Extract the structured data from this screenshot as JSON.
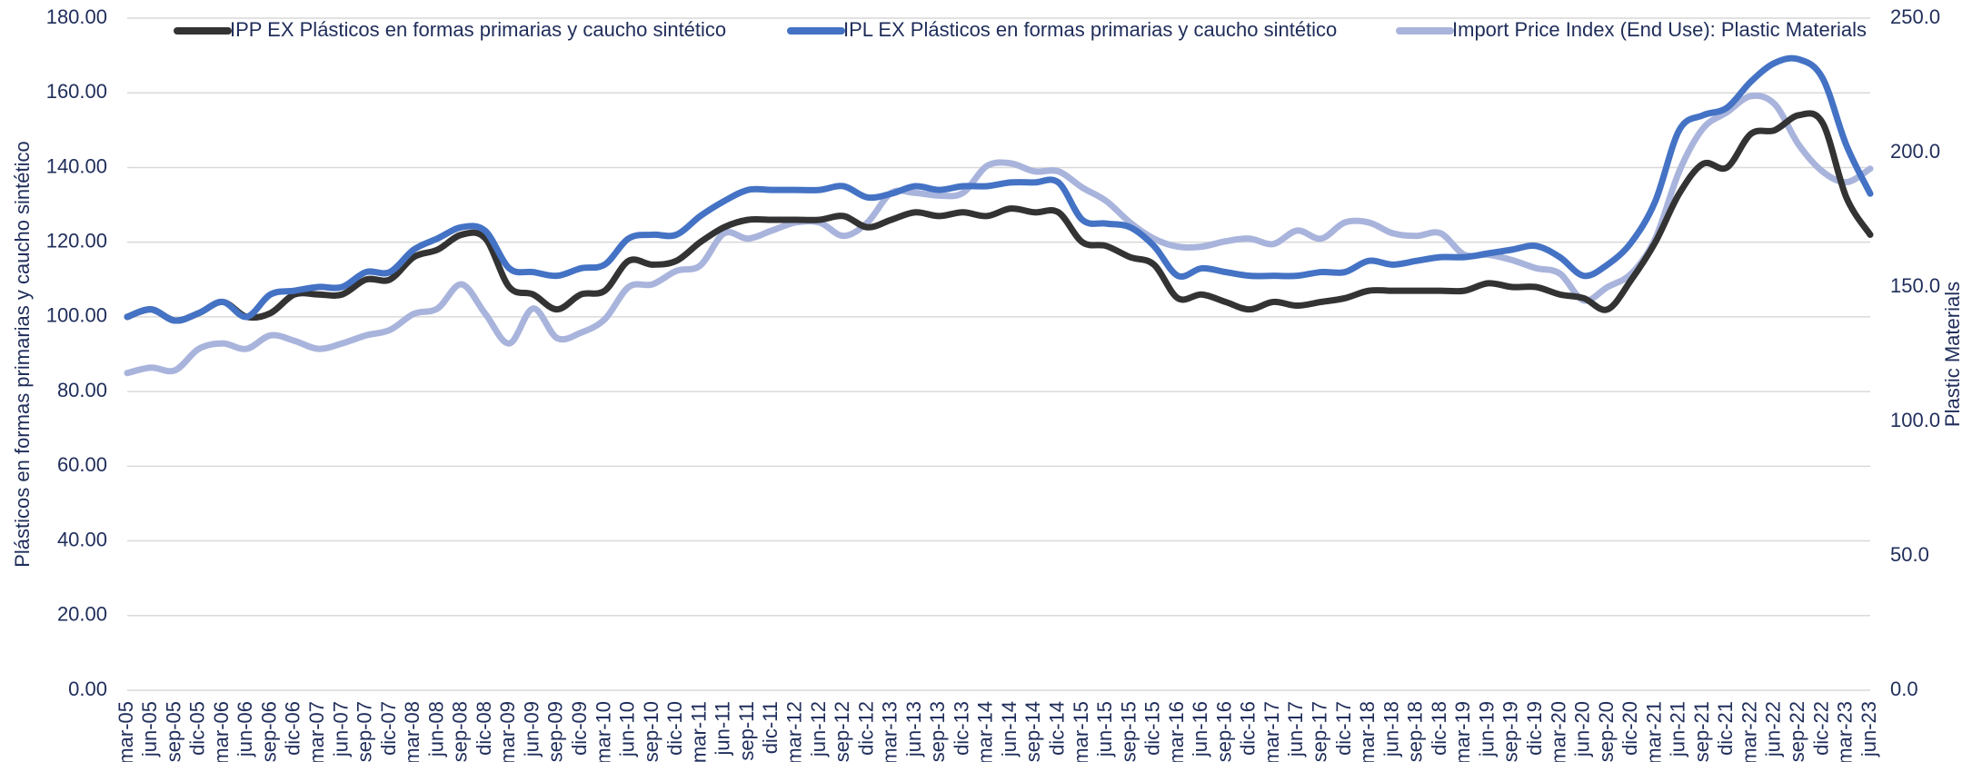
{
  "chart_data": {
    "type": "line",
    "y_label": "Plásticos en formas primarias y caucho sintético",
    "y2_label": "Plastic Materials",
    "categories": [
      "mar-05",
      "jun-05",
      "sep-05",
      "dic-05",
      "mar-06",
      "jun-06",
      "sep-06",
      "dic-06",
      "mar-07",
      "jun-07",
      "sep-07",
      "dic-07",
      "mar-08",
      "jun-08",
      "sep-08",
      "dic-08",
      "mar-09",
      "jun-09",
      "sep-09",
      "dic-09",
      "mar-10",
      "jun-10",
      "sep-10",
      "dic-10",
      "mar-11",
      "jun-11",
      "sep-11",
      "dic-11",
      "mar-12",
      "jun-12",
      "sep-12",
      "dic-12",
      "mar-13",
      "jun-13",
      "sep-13",
      "dic-13",
      "mar-14",
      "jun-14",
      "sep-14",
      "dic-14",
      "mar-15",
      "jun-15",
      "sep-15",
      "dic-15",
      "mar-16",
      "jun-16",
      "sep-16",
      "dic-16",
      "mar-17",
      "jun-17",
      "sep-17",
      "dic-17",
      "mar-18",
      "jun-18",
      "sep-18",
      "dic-18",
      "mar-19",
      "jun-19",
      "sep-19",
      "dic-19",
      "mar-20",
      "jun-20",
      "sep-20",
      "dic-20",
      "mar-21",
      "jun-21",
      "sep-21",
      "dic-21",
      "mar-22",
      "jun-22",
      "sep-22",
      "dic-22",
      "mar-23",
      "jun-23"
    ],
    "series": [
      {
        "name": "IPP EX Plásticos en formas primarias y caucho sintético",
        "color": "#333333",
        "values": [
          100,
          102,
          99,
          101,
          104,
          100,
          101,
          106,
          106,
          106,
          110,
          110,
          116,
          118,
          122,
          121,
          108,
          106,
          102,
          106,
          107,
          115,
          114,
          115,
          120,
          124,
          126,
          126,
          126,
          126,
          127,
          124,
          126,
          128,
          127,
          128,
          127,
          129,
          128,
          128,
          120,
          119,
          116,
          114,
          105,
          106,
          104,
          102,
          104,
          103,
          104,
          105,
          107,
          107,
          107,
          107,
          107,
          109,
          108,
          108,
          106,
          105,
          102,
          110,
          120,
          133,
          141,
          140,
          149,
          150,
          154,
          152,
          132,
          122
        ]
      },
      {
        "name": "IPL EX Plásticos en formas primarias y caucho sintético",
        "color": "#4472c4",
        "values": [
          100,
          102,
          99,
          101,
          104,
          100,
          106,
          107,
          108,
          108,
          112,
          112,
          118,
          121,
          124,
          123,
          113,
          112,
          111,
          113,
          114,
          121,
          122,
          122,
          127,
          131,
          134,
          134,
          134,
          134,
          135,
          132,
          133,
          135,
          134,
          135,
          135,
          136,
          136,
          136,
          126,
          125,
          124,
          119,
          111,
          113,
          112,
          111,
          111,
          111,
          112,
          112,
          115,
          114,
          115,
          116,
          116,
          117,
          118,
          119,
          116,
          111,
          114,
          120,
          131,
          150,
          154,
          156,
          163,
          168,
          169,
          164,
          146,
          133
        ]
      },
      {
        "name": "Import Price Index (End Use): Plastic Materials",
        "color": "#a9b4dc",
        "axis": "y2",
        "values": [
          118,
          120,
          119,
          127,
          129,
          127,
          132,
          130,
          127,
          129,
          132,
          134,
          140,
          142,
          151,
          140,
          129,
          142,
          131,
          133,
          138,
          150,
          151,
          156,
          158,
          170,
          168,
          171,
          174,
          174,
          169,
          174,
          185,
          185,
          184,
          185,
          195,
          196,
          193,
          193,
          187,
          182,
          174,
          168,
          165,
          165,
          167,
          168,
          166,
          171,
          168,
          174,
          174,
          170,
          169,
          170,
          162,
          162,
          160,
          157,
          155,
          145,
          150,
          155,
          168,
          193,
          209,
          215,
          221,
          218,
          203,
          193,
          189,
          194
        ]
      }
    ],
    "ylim": [
      0,
      180
    ],
    "yticks": [
      {
        "value": 0,
        "label": "0.00"
      },
      {
        "value": 20,
        "label": "20.00"
      },
      {
        "value": 40,
        "label": "40.00"
      },
      {
        "value": 60,
        "label": "60.00"
      },
      {
        "value": 80,
        "label": "80.00"
      },
      {
        "value": 100,
        "label": "100.00"
      },
      {
        "value": 120,
        "label": "120.00"
      },
      {
        "value": 140,
        "label": "140.00"
      },
      {
        "value": 160,
        "label": "160.00"
      },
      {
        "value": 180,
        "label": "180.00"
      }
    ],
    "y2lim": [
      0,
      250
    ],
    "y2ticks": [
      {
        "value": 0,
        "label": "0.0"
      },
      {
        "value": 50,
        "label": "50.0"
      },
      {
        "value": 100,
        "label": "100.0"
      },
      {
        "value": 150,
        "label": "150.0"
      },
      {
        "value": 200,
        "label": "200.0"
      },
      {
        "value": 250,
        "label": "250.0"
      }
    ],
    "grid": true,
    "legend": "top"
  }
}
